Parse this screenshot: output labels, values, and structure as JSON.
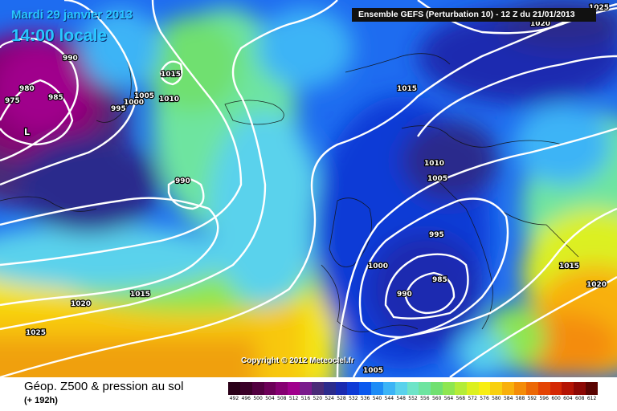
{
  "header": {
    "date": "Mardi 29 janvier 2013",
    "time": "14:00 locale",
    "model": "Ensemble GEFS (Perturbation 10)  -  12 Z du 21/01/2013"
  },
  "footer": {
    "title": "Géop. Z500 & pression au sol",
    "subtitle": "(+ 192h)",
    "copyright": "Copyright © 2012 Meteociel.fr"
  },
  "legend": {
    "values": [
      "492",
      "496",
      "500",
      "504",
      "508",
      "512",
      "516",
      "520",
      "524",
      "528",
      "532",
      "536",
      "540",
      "544",
      "548",
      "552",
      "556",
      "560",
      "564",
      "568",
      "572",
      "576",
      "580",
      "584",
      "588",
      "592",
      "596",
      "600",
      "604",
      "608",
      "612"
    ],
    "colors": [
      "#2a0018",
      "#3a0028",
      "#520040",
      "#6c0058",
      "#860072",
      "#a0008c",
      "#7a1c8c",
      "#4a2c78",
      "#2c2c8c",
      "#1a2ab0",
      "#0e3ad6",
      "#0a58ee",
      "#1e8cf6",
      "#3cb4f6",
      "#5ad2ec",
      "#6ee4c8",
      "#6ee4a0",
      "#70e070",
      "#8ee650",
      "#b4ec38",
      "#dcf020",
      "#f8ee12",
      "#f8d010",
      "#f8b00c",
      "#f48c08",
      "#ec6806",
      "#e44404",
      "#d42804",
      "#b41404",
      "#8c0804",
      "#5a0402"
    ]
  },
  "isobars": [
    {
      "label": "1025",
      "pos": "top-right"
    },
    {
      "label": "1020",
      "pos": "top-right-2"
    },
    {
      "label": "990",
      "pos": "nw-1"
    },
    {
      "label": "980",
      "pos": "nw-2"
    },
    {
      "label": "975",
      "pos": "nw-3"
    },
    {
      "label": "985",
      "pos": "nw-4"
    },
    {
      "label": "1015",
      "pos": "n-atl-1"
    },
    {
      "label": "1005",
      "pos": "n-atl-2"
    },
    {
      "label": "1000",
      "pos": "n-atl-3"
    },
    {
      "label": "995",
      "pos": "n-atl-4"
    },
    {
      "label": "1010",
      "pos": "n-atl-5"
    },
    {
      "label": "1015",
      "pos": "scand"
    },
    {
      "label": "990",
      "pos": "mid-atl"
    },
    {
      "label": "1010",
      "pos": "north-sea"
    },
    {
      "label": "1005",
      "pos": "europe-1"
    },
    {
      "label": "995",
      "pos": "europe-2"
    },
    {
      "label": "1000",
      "pos": "biscay"
    },
    {
      "label": "985",
      "pos": "low-center"
    },
    {
      "label": "990",
      "pos": "iberia"
    },
    {
      "label": "1015",
      "pos": "atl-sw"
    },
    {
      "label": "1020",
      "pos": "atl-sw-2"
    },
    {
      "label": "1025",
      "pos": "atl-sw-3"
    },
    {
      "label": "1015",
      "pos": "east-1"
    },
    {
      "label": "1020",
      "pos": "east-2"
    },
    {
      "label": "1005",
      "pos": "south"
    }
  ]
}
